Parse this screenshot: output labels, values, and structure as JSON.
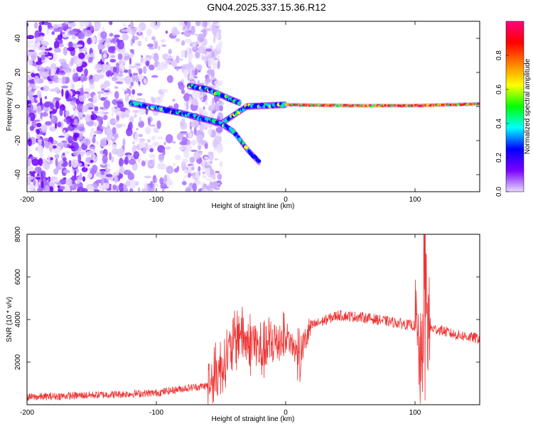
{
  "title": "GN04.2025.337.15.36.R12",
  "chart_data": [
    {
      "type": "heatmap",
      "xlabel": "Height of straight line (km)",
      "ylabel": "Frequency (Hz)",
      "xlim": [
        -200,
        150
      ],
      "ylim": [
        -50,
        50
      ],
      "xticks": [
        -200,
        -100,
        0,
        100
      ],
      "yticks": [
        -40,
        -20,
        0,
        20,
        40
      ],
      "colorbar": {
        "label": "Normalized spectral amplitude",
        "range": [
          0,
          1
        ],
        "ticks": [
          "0.0",
          "0.2",
          "0.4",
          "0.6",
          "0.8"
        ],
        "colors": [
          "#e6dcff",
          "#7a00ff",
          "#0000ff",
          "#00ffff",
          "#00ff00",
          "#ffff00",
          "#ff8000",
          "#ff0000",
          "#ff0080"
        ]
      },
      "features": [
        {
          "name": "main-carrier-line",
          "x": [
            -120,
            -80,
            -50,
            -30,
            0,
            50,
            100,
            150
          ],
          "y": [
            2,
            -4,
            -10,
            0,
            1,
            0.5,
            0.5,
            1.5
          ]
        },
        {
          "name": "upper-branch",
          "x": [
            -75,
            -60,
            -45,
            -35
          ],
          "y": [
            12,
            10,
            5,
            2
          ]
        },
        {
          "name": "lower-branch",
          "x": [
            -50,
            -40,
            -30,
            -20
          ],
          "y": [
            -10,
            -15,
            -25,
            -33
          ]
        }
      ]
    },
    {
      "type": "line",
      "xlabel": "Height of straight line (km)",
      "ylabel": "SNR (10 * v/v)",
      "xlim": [
        -200,
        150
      ],
      "ylim": [
        0,
        8000
      ],
      "xticks": [
        -200,
        -100,
        0,
        100
      ],
      "yticks": [
        2000,
        4000,
        6000,
        8000
      ],
      "color": "#ee3333",
      "series": [
        {
          "name": "SNR",
          "x": [
            -200,
            -150,
            -100,
            -80,
            -60,
            -50,
            -40,
            -35,
            -30,
            -25,
            -20,
            -10,
            0,
            10,
            20,
            40,
            60,
            80,
            100,
            105,
            108,
            110,
            120,
            130,
            150
          ],
          "y": [
            350,
            450,
            550,
            750,
            900,
            1800,
            2900,
            3500,
            2800,
            3000,
            2500,
            2800,
            3300,
            2300,
            3700,
            4200,
            4100,
            3900,
            3700,
            1500,
            6500,
            3600,
            3500,
            3300,
            3100
          ]
        }
      ]
    }
  ]
}
